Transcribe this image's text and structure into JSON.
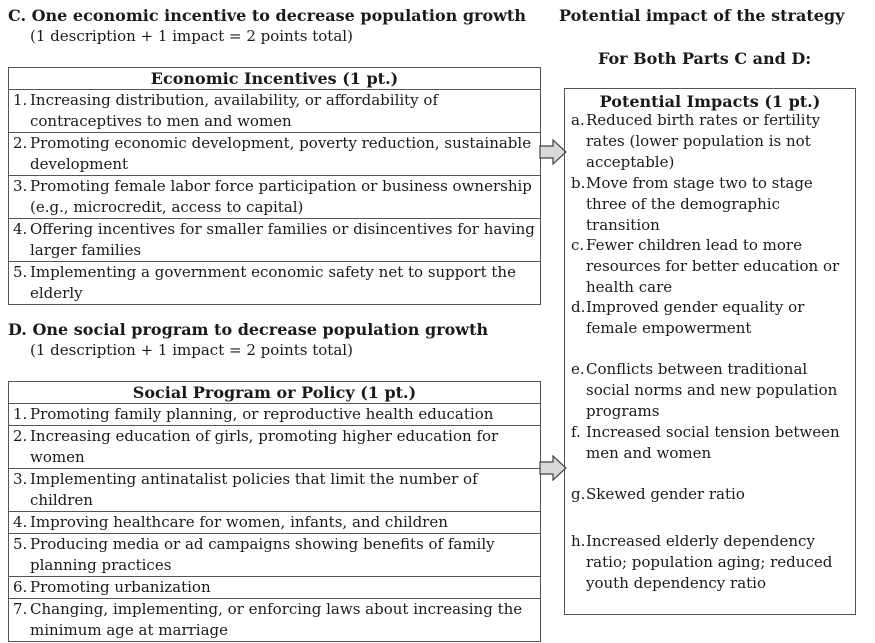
{
  "part_c": {
    "heading": "C. One economic incentive to decrease population growth",
    "scoring": "(1 description + 1 impact = 2 points total)",
    "table_header": "Economic Incentives (1 pt.)",
    "items": [
      {
        "num": "1.",
        "text": "Increasing distribution, availability, or affordability of contraceptives to men and women"
      },
      {
        "num": "2.",
        "text": "Promoting economic development, poverty reduction, sustainable development"
      },
      {
        "num": "3.",
        "text": "Promoting female labor force participation or business ownership (e.g., microcredit, access to capital)"
      },
      {
        "num": "4.",
        "text": "Offering incentives for smaller families or disincentives for having larger families"
      },
      {
        "num": "5.",
        "text": "Implementing a government economic safety net to support the elderly"
      }
    ]
  },
  "part_d": {
    "heading": "D. One social program to decrease population growth",
    "scoring": "(1 description + 1 impact = 2 points total)",
    "table_header": "Social Program or Policy (1 pt.)",
    "items": [
      {
        "num": "1.",
        "text": "Promoting family planning, or reproductive health education"
      },
      {
        "num": "2.",
        "text": "Increasing education of girls, promoting higher education for women"
      },
      {
        "num": "3.",
        "text": "Implementing antinatalist policies that limit the number of children"
      },
      {
        "num": "4.",
        "text": "Improving healthcare for women, infants, and children"
      },
      {
        "num": "5.",
        "text": "Producing media or ad campaigns showing benefits of family planning practices"
      },
      {
        "num": "6.",
        "text": "Promoting urbanization"
      },
      {
        "num": "7.",
        "text": "Changing, implementing, or enforcing laws about increasing the minimum age at marriage"
      }
    ]
  },
  "impact": {
    "heading": "Potential impact of the strategy",
    "subheading": "For Both Parts C and D:",
    "box_title": "Potential Impacts (1 pt.)",
    "items": [
      {
        "letter": "a.",
        "text": "Reduced birth rates or fertility rates (lower population is not acceptable)"
      },
      {
        "letter": "b.",
        "text": "Move from stage two to stage three of the demographic transition"
      },
      {
        "letter": "c.",
        "text": "Fewer children lead to more resources for better education or health care"
      },
      {
        "letter": "d.",
        "text": "Improved gender equality or female empowerment"
      },
      {
        "letter": "e.",
        "text": "Conflicts between traditional social norms and new population programs"
      },
      {
        "letter": "f.",
        "text": "Increased social tension between men and women"
      },
      {
        "letter": "g.",
        "text": "Skewed gender ratio"
      },
      {
        "letter": "h.",
        "text": "Increased elderly dependency ratio; population aging; reduced youth dependency ratio"
      }
    ]
  }
}
